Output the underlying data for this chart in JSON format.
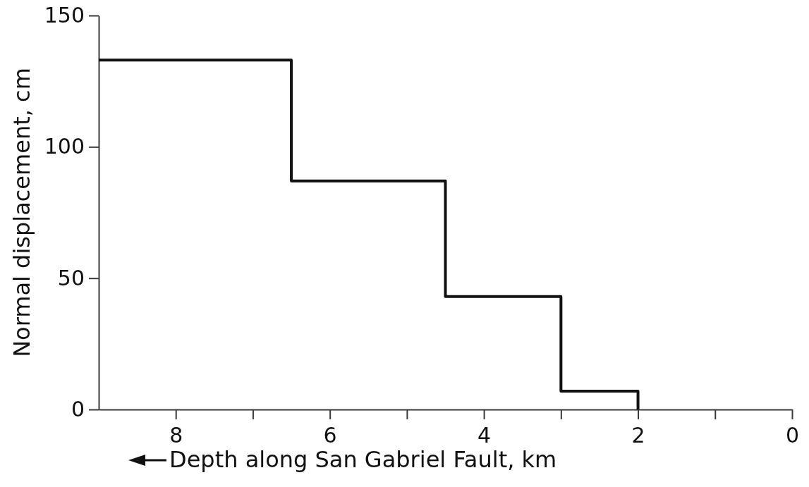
{
  "chart_data": {
    "type": "step",
    "xlabel": "Depth along San Gabriel Fault, km",
    "ylabel": "Normal displacement, cm",
    "x": [
      9,
      6.5,
      4.5,
      3,
      2
    ],
    "series": [
      {
        "color": "#111111",
        "values": [
          133,
          87,
          43,
          7,
          0
        ]
      }
    ],
    "xlim": [
      9,
      0
    ],
    "xticks": [
      8,
      {
        "value": 7,
        "label": null
      },
      6,
      {
        "value": 5,
        "label": null
      },
      4,
      {
        "value": 3,
        "label": null
      },
      2,
      {
        "value": 1,
        "label": null
      },
      0
    ],
    "ylim": [
      0,
      150
    ],
    "yticks": [
      0,
      50,
      100,
      150
    ],
    "grid": false
  }
}
